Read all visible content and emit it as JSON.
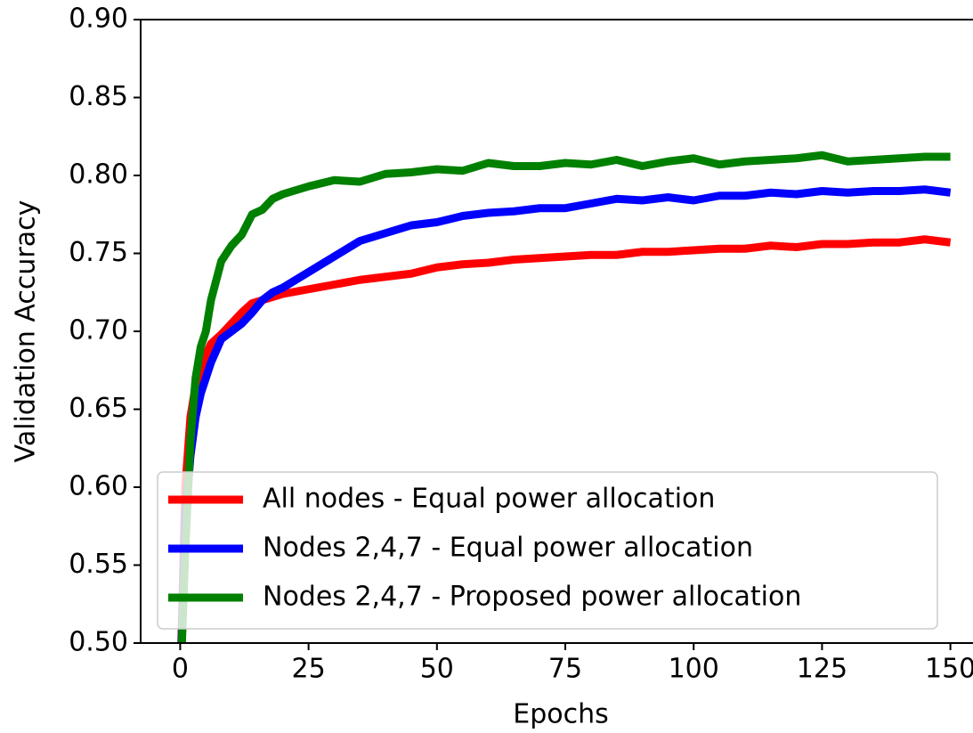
{
  "chart_data": {
    "type": "line",
    "xlabel": "Epochs",
    "ylabel": "Validation Accuracy",
    "x": [
      0,
      1,
      2,
      3,
      4,
      5,
      6,
      8,
      10,
      12,
      14,
      16,
      18,
      20,
      25,
      30,
      35,
      40,
      45,
      50,
      55,
      60,
      65,
      70,
      75,
      80,
      85,
      90,
      95,
      100,
      105,
      110,
      115,
      120,
      125,
      130,
      135,
      140,
      145,
      150
    ],
    "series": [
      {
        "name": "All nodes - Equal power allocation",
        "color": "#ff0000",
        "values": [
          0.47,
          0.6,
          0.645,
          0.665,
          0.675,
          0.685,
          0.692,
          0.698,
          0.705,
          0.712,
          0.718,
          0.72,
          0.722,
          0.724,
          0.727,
          0.73,
          0.733,
          0.735,
          0.737,
          0.741,
          0.743,
          0.744,
          0.746,
          0.747,
          0.748,
          0.749,
          0.749,
          0.751,
          0.751,
          0.752,
          0.753,
          0.753,
          0.755,
          0.754,
          0.756,
          0.756,
          0.757,
          0.757,
          0.759,
          0.757
        ]
      },
      {
        "name": "Nodes 2,4,7 - Equal power allocation",
        "color": "#0000ff",
        "values": [
          0.47,
          0.58,
          0.62,
          0.645,
          0.66,
          0.67,
          0.68,
          0.695,
          0.7,
          0.705,
          0.712,
          0.72,
          0.725,
          0.728,
          0.738,
          0.748,
          0.758,
          0.763,
          0.768,
          0.77,
          0.774,
          0.776,
          0.777,
          0.779,
          0.779,
          0.782,
          0.785,
          0.784,
          0.786,
          0.784,
          0.787,
          0.787,
          0.789,
          0.788,
          0.79,
          0.789,
          0.79,
          0.79,
          0.791,
          0.789
        ]
      },
      {
        "name": "Nodes 2,4,7 - Proposed power allocation",
        "color": "#008000",
        "values": [
          0.47,
          0.56,
          0.63,
          0.67,
          0.69,
          0.7,
          0.72,
          0.745,
          0.755,
          0.762,
          0.775,
          0.778,
          0.785,
          0.788,
          0.793,
          0.797,
          0.796,
          0.801,
          0.802,
          0.804,
          0.803,
          0.808,
          0.806,
          0.806,
          0.808,
          0.807,
          0.81,
          0.806,
          0.809,
          0.811,
          0.807,
          0.809,
          0.81,
          0.811,
          0.813,
          0.809,
          0.81,
          0.811,
          0.812,
          0.812
        ]
      }
    ],
    "xlim": [
      -7.7,
      154.4
    ],
    "xticks": [
      0,
      25,
      50,
      75,
      100,
      125,
      150
    ],
    "ylim": [
      0.5,
      0.9
    ],
    "yticks": [
      {
        "value": 0.5,
        "label": "0.50"
      },
      {
        "value": 0.55,
        "label": "0.55"
      },
      {
        "value": 0.6,
        "label": "0.60"
      },
      {
        "value": 0.65,
        "label": "0.65"
      },
      {
        "value": 0.7,
        "label": "0.70"
      },
      {
        "value": 0.75,
        "label": "0.75"
      },
      {
        "value": 0.8,
        "label": "0.80"
      },
      {
        "value": 0.85,
        "label": "0.85"
      },
      {
        "value": 0.9,
        "label": "0.90"
      }
    ],
    "legend": "lower right",
    "grid": false
  }
}
